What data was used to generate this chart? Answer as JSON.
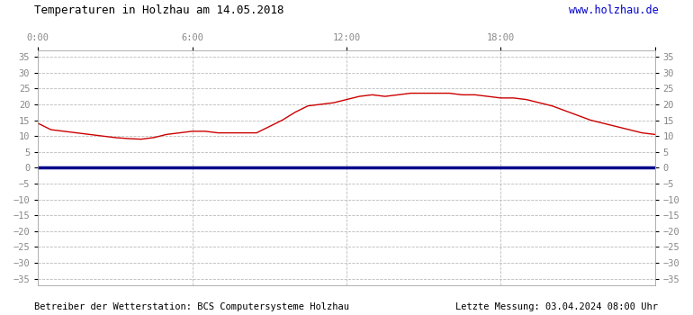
{
  "title": "Temperaturen in Holzhau am 14.05.2018",
  "url_text": "www.holzhau.de",
  "footer_left": "Betreiber der Wetterstation: BCS Computersysteme Holzhau",
  "footer_right": "Letzte Messung: 03.04.2024 08:00 Uhr",
  "x_ticks_hours": [
    0,
    6,
    12,
    18,
    24
  ],
  "x_tick_labels": [
    "0:00",
    "6:00",
    "12:00",
    "18:00",
    ""
  ],
  "y_ticks": [
    -35,
    -30,
    -25,
    -20,
    -15,
    -10,
    -5,
    0,
    5,
    10,
    15,
    20,
    25,
    30,
    35
  ],
  "ylim": [
    -37,
    37
  ],
  "xlim": [
    0,
    24
  ],
  "line_color": "#cc0000",
  "zero_line_color": "#00008b",
  "grid_color": "#bbbbbb",
  "bg_color": "#ffffff",
  "title_color": "#000000",
  "url_color": "#0000cc",
  "footer_color": "#000000",
  "tick_color": "#888888",
  "temp_x": [
    0.0,
    0.5,
    1.0,
    1.5,
    2.0,
    2.5,
    3.0,
    3.5,
    4.0,
    4.5,
    5.0,
    5.5,
    6.0,
    6.5,
    7.0,
    7.5,
    8.0,
    8.5,
    9.0,
    9.5,
    10.0,
    10.5,
    11.0,
    11.5,
    12.0,
    12.5,
    13.0,
    13.5,
    14.0,
    14.5,
    15.0,
    15.5,
    16.0,
    16.5,
    17.0,
    17.5,
    18.0,
    18.5,
    19.0,
    19.5,
    20.0,
    20.5,
    21.0,
    21.5,
    22.0,
    22.5,
    23.0,
    23.5,
    24.0
  ],
  "temp_y": [
    14.0,
    12.0,
    11.5,
    11.0,
    10.5,
    10.0,
    9.5,
    9.2,
    9.0,
    9.5,
    10.5,
    11.0,
    11.5,
    11.5,
    11.0,
    11.0,
    11.0,
    11.0,
    13.0,
    15.0,
    17.5,
    19.5,
    20.0,
    20.5,
    21.5,
    22.5,
    23.0,
    22.5,
    23.0,
    23.5,
    23.5,
    23.5,
    23.5,
    23.0,
    23.0,
    22.5,
    22.0,
    22.0,
    21.5,
    20.5,
    19.5,
    18.0,
    16.5,
    15.0,
    14.0,
    13.0,
    12.0,
    11.0,
    10.5
  ],
  "title_fontsize": 9.0,
  "url_fontsize": 8.5,
  "tick_fontsize": 7.5,
  "footer_fontsize": 7.5
}
